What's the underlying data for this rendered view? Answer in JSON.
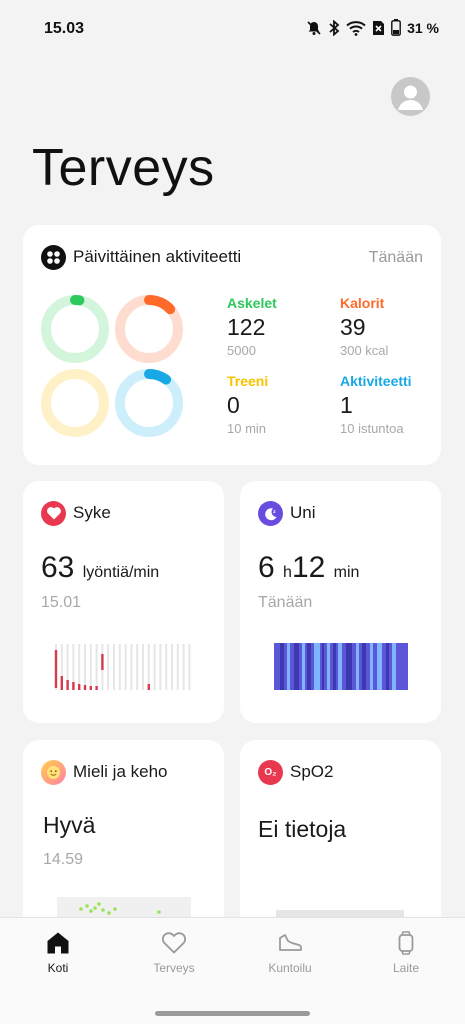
{
  "status_bar": {
    "time": "15.03",
    "battery": "31 %",
    "icons": [
      "bell-muted-icon",
      "bluetooth-icon",
      "wifi-icon",
      "no-sim-icon",
      "battery-icon"
    ]
  },
  "header": {
    "title": "Terveys",
    "avatar_icon": "user-avatar-icon"
  },
  "activity": {
    "title": "Päivittäinen aktiviteetti",
    "period": "Tänään",
    "icon": "activity-icon",
    "stats": [
      {
        "label": "Askelet",
        "value": "122",
        "goal": "5000",
        "color": "#2ec95c",
        "progress": 0.0244
      },
      {
        "label": "Kalorit",
        "value": "39",
        "goal": "300 kcal",
        "color": "#ff6a2a",
        "progress": 0.13
      },
      {
        "label": "Treeni",
        "value": "0",
        "goal": "10 min",
        "color": "#f5c400",
        "progress": 0
      },
      {
        "label": "Aktiviteetti",
        "value": "1",
        "goal": "10 istuntoa",
        "color": "#19a8e6",
        "progress": 0.1
      }
    ]
  },
  "heart": {
    "title": "Syke",
    "value": "63",
    "unit": "lyöntiä/min",
    "time": "15.01",
    "icon": "heart-icon",
    "accent": "#e8384f"
  },
  "sleep": {
    "title": "Uni",
    "hours": "6",
    "hours_unit": "h",
    "minutes": "12",
    "minutes_unit": "min",
    "time": "Tänään",
    "icon": "moon-icon",
    "accent": "#6a4be0"
  },
  "mood": {
    "title": "Mieli ja keho",
    "value": "Hyvä",
    "time": "14.59",
    "icon": "smiley-icon"
  },
  "spo2": {
    "title": "SpO2",
    "value": "Ei tietoja",
    "icon": "o2-icon",
    "accent": "#e8384f",
    "icon_text": "O₂"
  },
  "nav": {
    "items": [
      {
        "label": "Koti",
        "icon": "home-icon",
        "active": true
      },
      {
        "label": "Terveys",
        "icon": "heart-outline-icon",
        "active": false
      },
      {
        "label": "Kuntoilu",
        "icon": "shoe-icon",
        "active": false
      },
      {
        "label": "Laite",
        "icon": "watch-icon",
        "active": false
      }
    ]
  }
}
